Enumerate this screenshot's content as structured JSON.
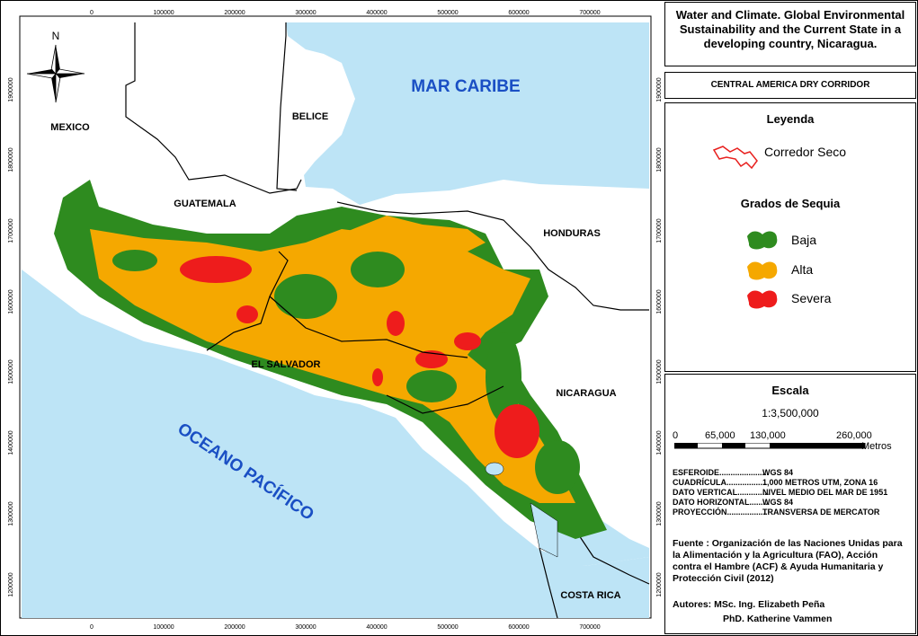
{
  "title": "Water and Climate. Global Environmental Sustainability and the Current State in a developing country, Nicaragua.",
  "subtitle": "CENTRAL AMERICA DRY CORRIDOR",
  "map_labels": {
    "mar_caribe": "MAR CARIBE",
    "oceano_pacifico": "OCEANO PACÍFICO",
    "mexico": "MEXICO",
    "belice": "BELICE",
    "guatemala": "GUATEMALA",
    "honduras": "HONDURAS",
    "el_salvador": "EL SALVADOR",
    "nicaragua": "NICARAGUA",
    "costa_rica": "COSTA RICA",
    "north": "N"
  },
  "x_ticks": [
    "0",
    "100000",
    "200000",
    "300000",
    "400000",
    "500000",
    "600000",
    "700000"
  ],
  "y_ticks": [
    "1900000",
    "1800000",
    "1700000",
    "1600000",
    "1500000",
    "1400000",
    "1300000",
    "1200000"
  ],
  "legend": {
    "heading": "Leyenda",
    "corredor": "Corredor Seco",
    "grados_heading": "Grados de Sequia",
    "baja": "Baja",
    "alta": "Alta",
    "severa": "Severa"
  },
  "colors": {
    "baja": "#2e8b1f",
    "alta": "#f5a800",
    "severa": "#ee1c1c",
    "water": "#bde4f6",
    "corredor": "#e8201e"
  },
  "scale": {
    "heading": "Escala",
    "ratio": "1:3,500,000",
    "ticks": [
      "0",
      "65,000",
      "130,000",
      "260,000"
    ],
    "unit": "Metros"
  },
  "metadata": [
    {
      "key": "ESFEROIDE......................",
      "value": "WGS 84"
    },
    {
      "key": "CUADRÍCULA..................",
      "value": "1,000 METROS UTM, ZONA 16"
    },
    {
      "key": "DATO VERTICAL..............",
      "value": "NIVEL MEDIO DEL MAR DE 1951"
    },
    {
      "key": "DATO HORIZONTAL.........",
      "value": "WGS 84"
    },
    {
      "key": "PROYECCIÓN..................",
      "value": "TRANSVERSA DE MERCATOR"
    }
  ],
  "source": "Fuente : Organización de las Naciones Unidas para la Alimentación y la Agricultura (FAO), Acción contra el Hambre (ACF) & Ayuda Humanitaria y Protección Civil (2012)",
  "authors": {
    "line1": "Autores: MSc. Ing. Elizabeth Peña",
    "line2": "PhD. Katherine Vammen"
  }
}
